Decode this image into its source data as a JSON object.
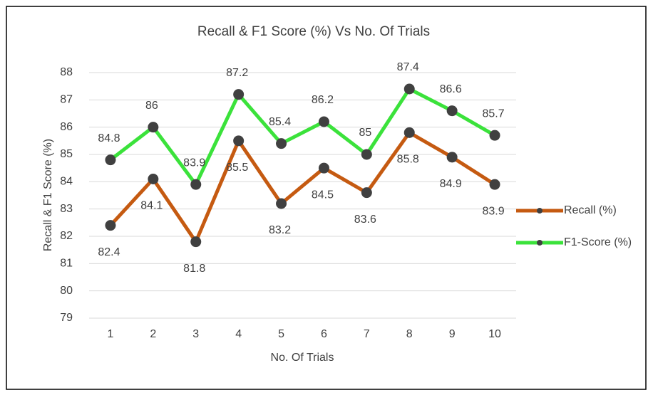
{
  "chart_data": {
    "type": "line",
    "title": "Recall & F1 Score (%) Vs No. Of Trials",
    "x_label": "No. Of Trials",
    "y_label": "Recall & F1 Score (%)",
    "categories": [
      "1",
      "2",
      "3",
      "4",
      "5",
      "6",
      "7",
      "8",
      "9",
      "10"
    ],
    "series": [
      {
        "name": "Recall (%)",
        "color": "#c55a11",
        "values": [
          82.4,
          84.1,
          81.8,
          85.5,
          83.2,
          84.5,
          83.6,
          85.8,
          84.9,
          83.9
        ],
        "label_position": "below"
      },
      {
        "name": "F1-Score (%)",
        "color": "#3be23b",
        "values": [
          84.8,
          86,
          83.9,
          87.2,
          85.4,
          86.2,
          85,
          87.4,
          86.6,
          85.7
        ],
        "label_position": "above"
      }
    ],
    "ylim": [
      79,
      88
    ],
    "yticks": [
      79,
      80,
      81,
      82,
      83,
      84,
      85,
      86,
      87,
      88
    ],
    "grid": true,
    "legend": "right"
  }
}
